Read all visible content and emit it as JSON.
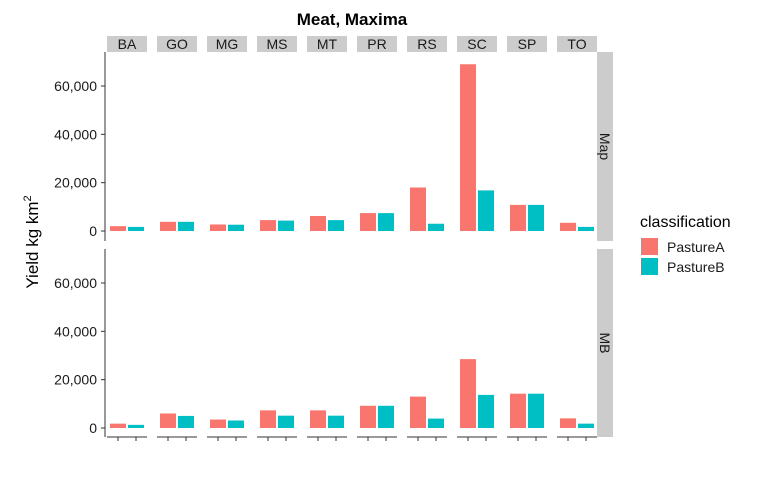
{
  "chart_data": {
    "type": "bar",
    "title": "Meat, Maxima",
    "ylabel_main": "Yield kg km",
    "ylabel_sup": "2",
    "xlabel": "",
    "ylim": [
      0,
      72000
    ],
    "yticks": [
      0,
      20000,
      40000,
      60000
    ],
    "ytick_labels": [
      "0",
      "20,000",
      "40,000",
      "60,000"
    ],
    "grid": false,
    "legend_position": "right",
    "legend_title": "classification",
    "colors": {
      "PastureA": "#f8766d",
      "PastureB": "#00bfc4"
    },
    "column_facets": [
      "BA",
      "GO",
      "MG",
      "MS",
      "MT",
      "PR",
      "RS",
      "SC",
      "SP",
      "TO"
    ],
    "row_facets": [
      "Map",
      "MB"
    ],
    "series": [
      {
        "name": "PastureA",
        "facet_values": {
          "Map": [
            2000,
            3800,
            2700,
            4500,
            6200,
            7400,
            18000,
            69000,
            10800,
            3400
          ],
          "MB": [
            1800,
            6000,
            3500,
            7300,
            7300,
            9200,
            13000,
            28500,
            14200,
            4000
          ]
        }
      },
      {
        "name": "PastureB",
        "facet_values": {
          "Map": [
            1700,
            3800,
            2600,
            4300,
            4500,
            7400,
            3000,
            16800,
            10800,
            1700
          ],
          "MB": [
            1300,
            5000,
            3100,
            5100,
            5100,
            9200,
            3900,
            13700,
            14200,
            1800
          ]
        }
      }
    ]
  }
}
